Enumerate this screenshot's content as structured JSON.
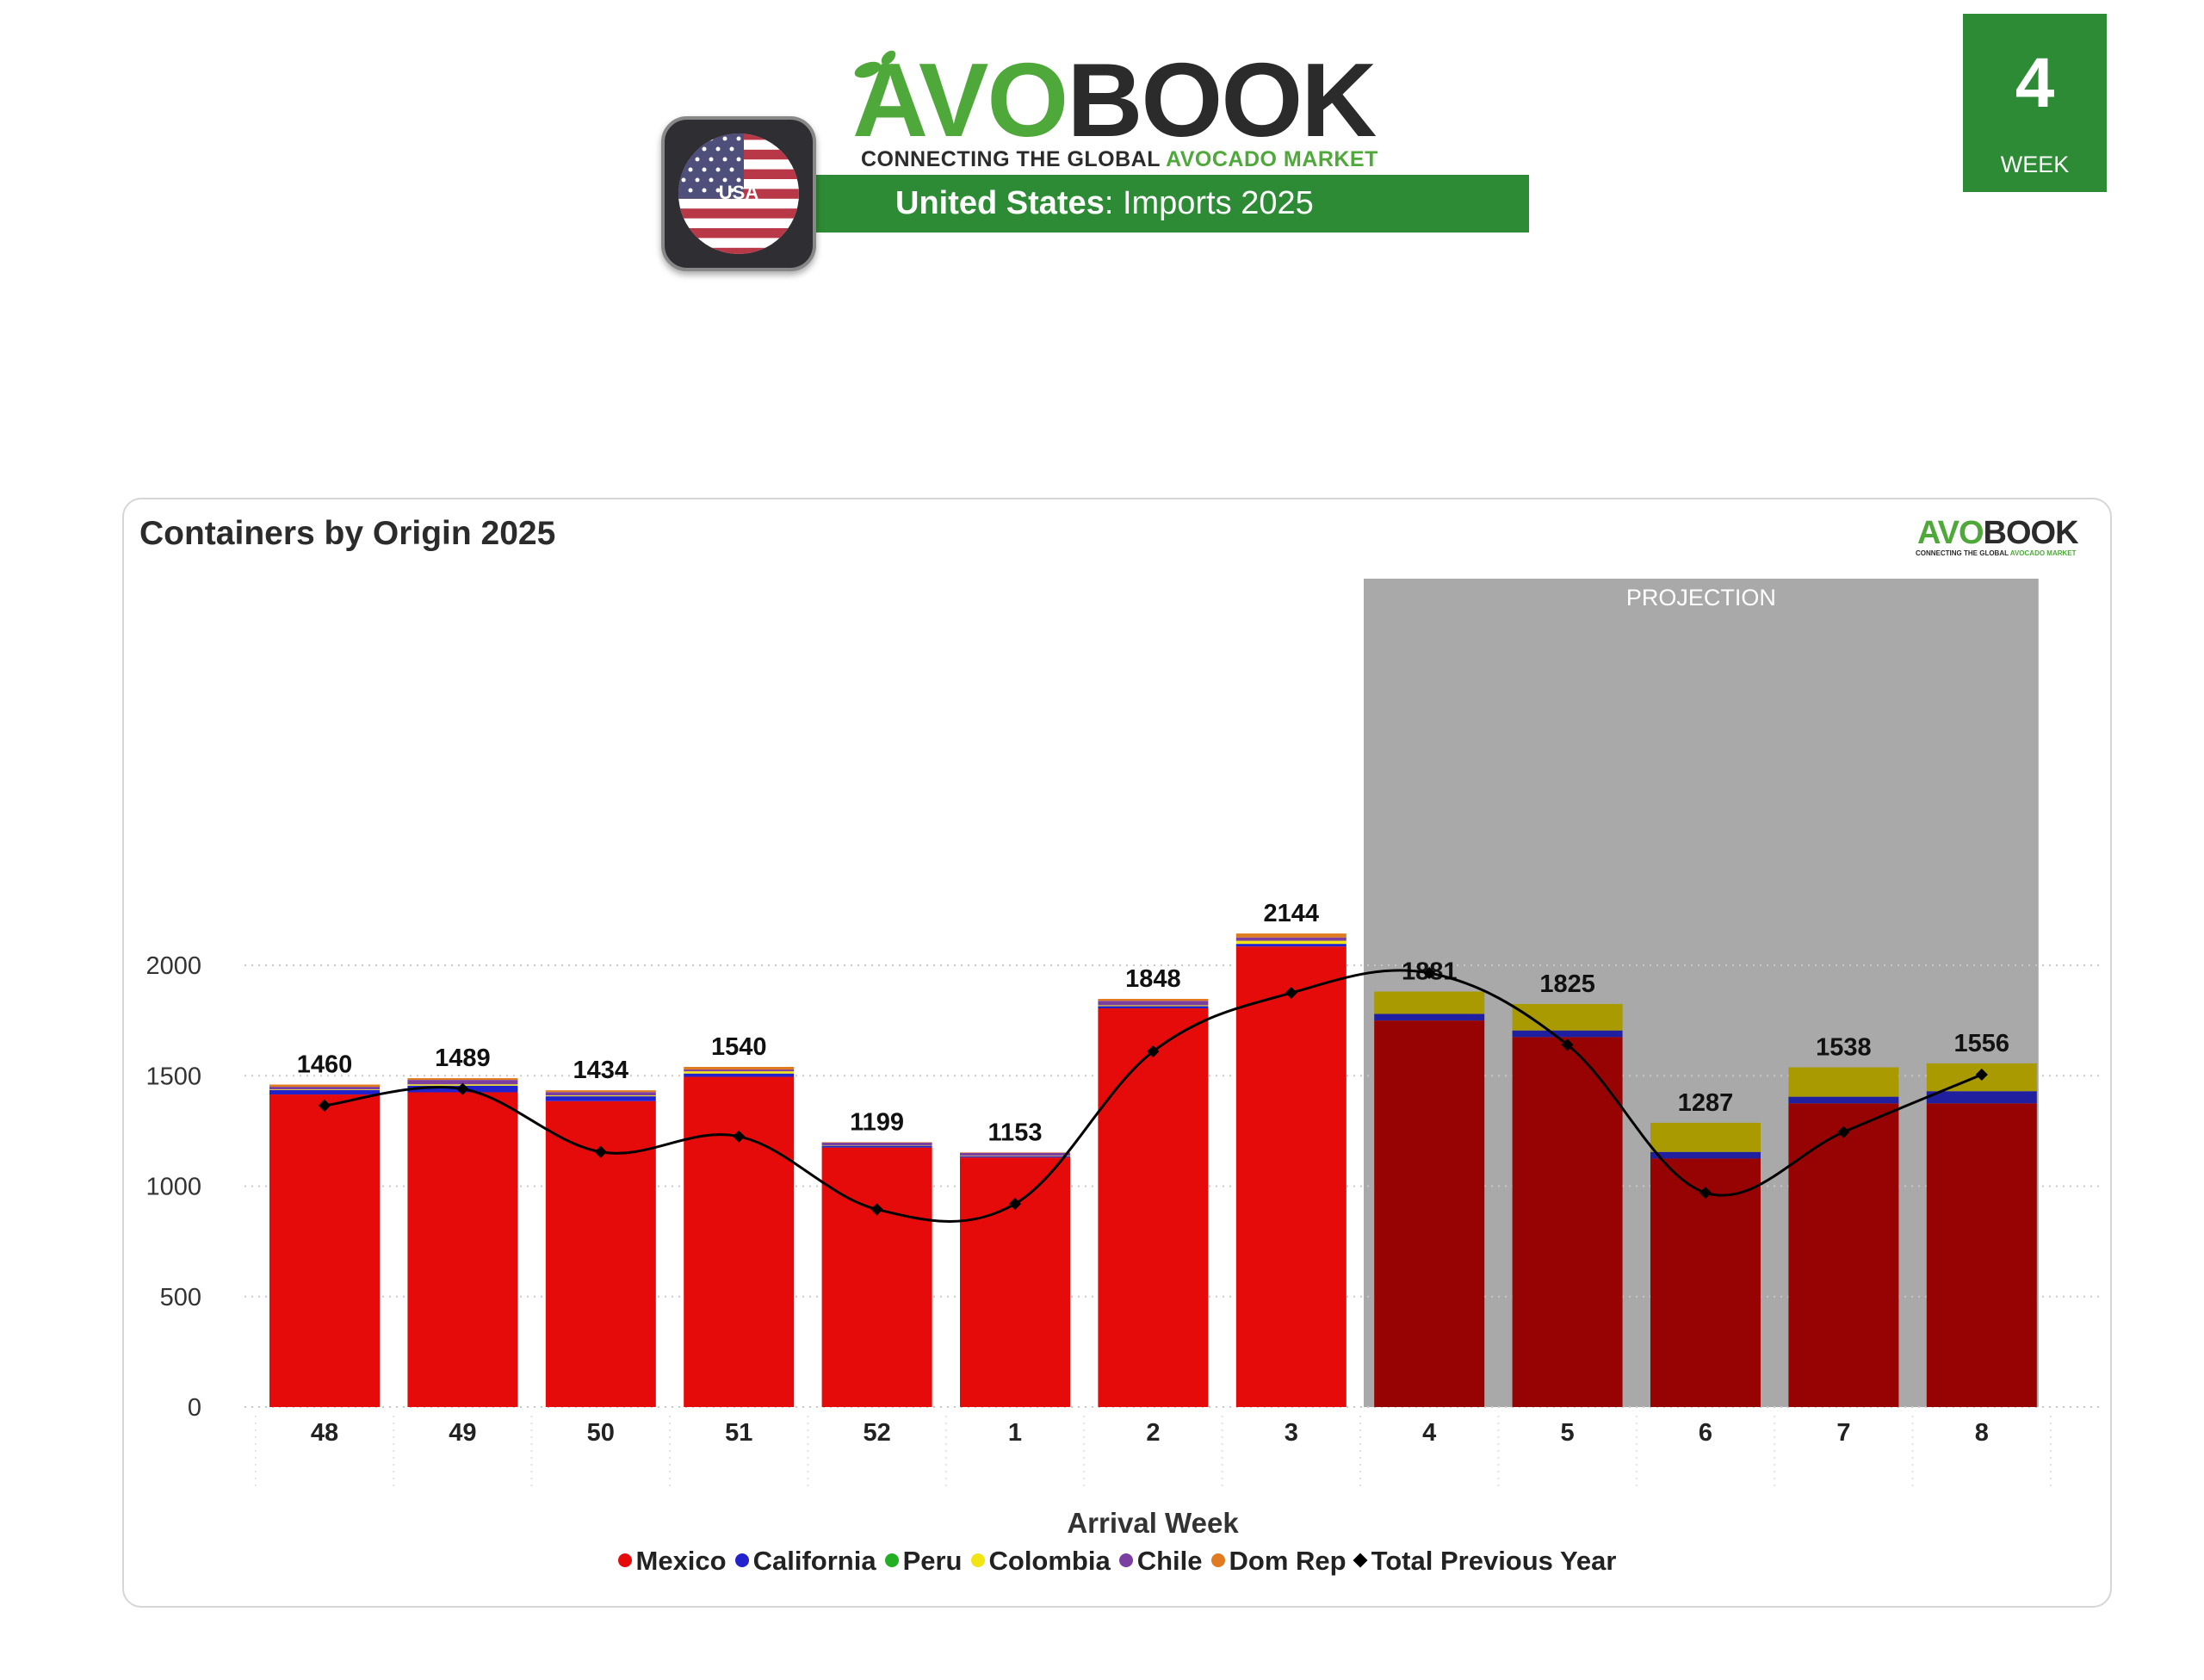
{
  "header": {
    "logo_part1": "AVO",
    "logo_part2": "BOOK",
    "tagline_part1": "CONNECTING THE GLOBAL ",
    "tagline_part2": "AVOCADO MARKET",
    "flag_label": "USA",
    "title_bold": "United States",
    "title_rest": ": Imports 2025",
    "week_number": "4",
    "week_label": "WEEK"
  },
  "card": {
    "title": "Containers by Origin 2025",
    "mini_logo_part1": "AVO",
    "mini_logo_part2": "BOOK",
    "mini_tagline_part1": "CONNECTING THE GLOBAL ",
    "mini_tagline_part2": "AVOCADO MARKET"
  },
  "colors": {
    "brand_green": "#2e8b35",
    "logo_green": "#4fa83a",
    "mexico": "#e60b0b",
    "california": "#2222cc",
    "peru": "#22b022",
    "colombia": "#f2e313",
    "chile": "#7a3fa0",
    "dom_rep": "#e07b1f",
    "projection_bg": "#a9a9a9",
    "proj_mexico": "#970303",
    "proj_california": "#1f1fa0",
    "proj_other": "#a89a00"
  },
  "chart_data": {
    "type": "bar",
    "title": "Containers by Origin 2025",
    "xlabel": "Arrival Week",
    "ylabel": "",
    "ylim": [
      0,
      2400
    ],
    "yticks": [
      0,
      500,
      1000,
      1500,
      2000
    ],
    "grid": true,
    "legend_position": "bottom",
    "projection_label": "PROJECTION",
    "projection_categories": [
      "4",
      "5",
      "6",
      "7",
      "8"
    ],
    "categories": [
      "48",
      "49",
      "50",
      "51",
      "52",
      "1",
      "2",
      "3",
      "4",
      "5",
      "6",
      "7",
      "8"
    ],
    "totals": [
      1460,
      1489,
      1434,
      1540,
      1199,
      1153,
      1848,
      2144,
      1881,
      1825,
      1287,
      1538,
      1556
    ],
    "series": [
      {
        "name": "Mexico",
        "color": "#e60b0b",
        "values": [
          1415,
          1425,
          1385,
          1495,
          1175,
          1130,
          1805,
          2085,
          1750,
          1675,
          1125,
          1375,
          1375
        ]
      },
      {
        "name": "California",
        "color": "#2222cc",
        "values": [
          20,
          30,
          22,
          15,
          8,
          5,
          10,
          12,
          30,
          30,
          30,
          30,
          55
        ]
      },
      {
        "name": "Peru",
        "color": "#22b022",
        "values": [
          0,
          0,
          0,
          0,
          0,
          0,
          0,
          0,
          0,
          0,
          0,
          0,
          0
        ]
      },
      {
        "name": "Colombia",
        "color": "#f2e313",
        "values": [
          3,
          6,
          4,
          10,
          2,
          2,
          4,
          14,
          101,
          120,
          132,
          133,
          126
        ]
      },
      {
        "name": "Chile",
        "color": "#7a3fa0",
        "values": [
          12,
          20,
          15,
          8,
          12,
          14,
          20,
          15,
          0,
          0,
          0,
          0,
          0
        ]
      },
      {
        "name": "Dom Rep",
        "color": "#e07b1f",
        "values": [
          10,
          8,
          8,
          12,
          2,
          2,
          9,
          18,
          0,
          0,
          0,
          0,
          0
        ]
      }
    ],
    "line": {
      "name": "Total Previous Year",
      "color": "#000000",
      "values": [
        1365,
        1440,
        1155,
        1225,
        895,
        920,
        1610,
        1875,
        1965,
        1640,
        970,
        1245,
        1505
      ]
    },
    "legend": [
      "Mexico",
      "California",
      "Peru",
      "Colombia",
      "Chile",
      "Dom Rep",
      "Total Previous Year"
    ]
  }
}
